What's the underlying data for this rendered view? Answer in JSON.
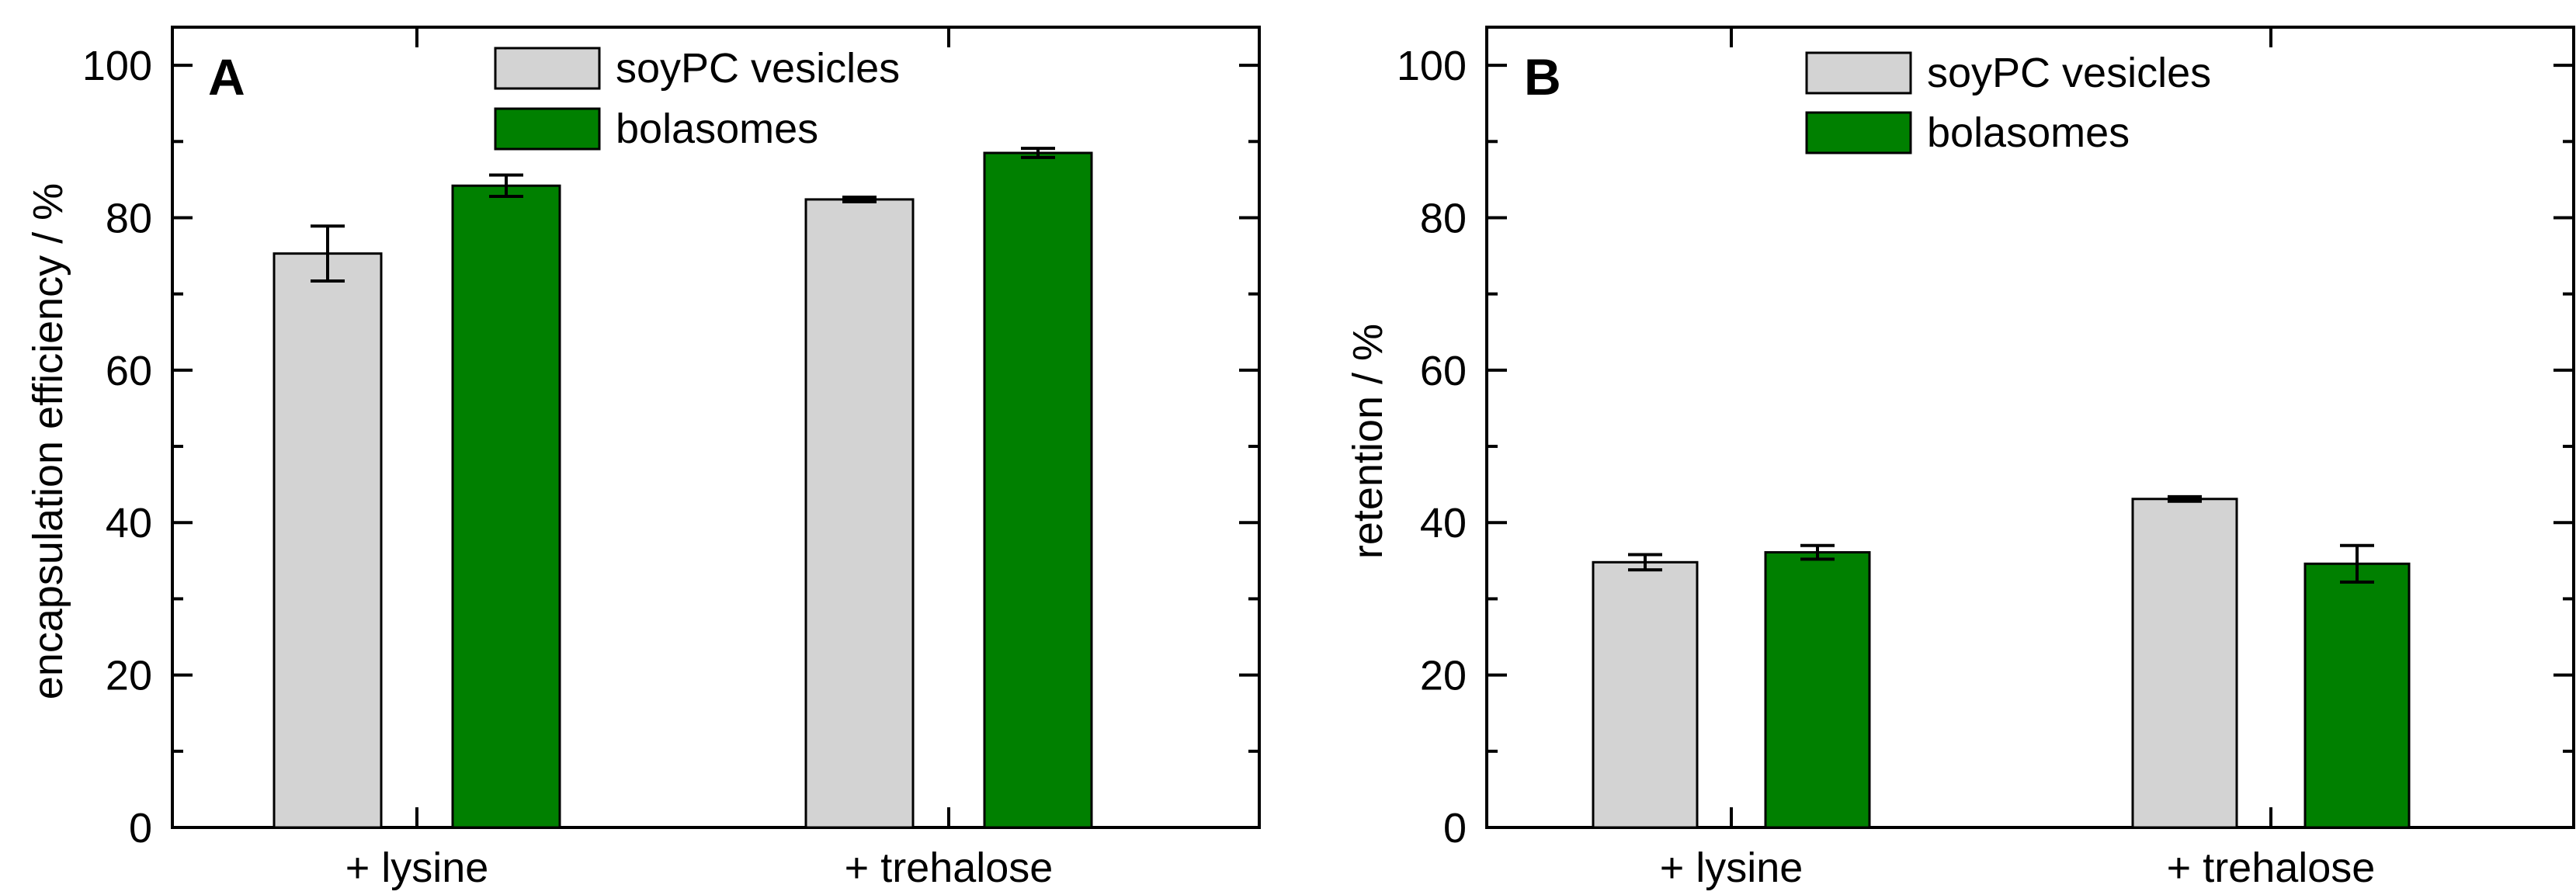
{
  "chart_data": [
    {
      "type": "bar",
      "panel_label": "A",
      "categories": [
        "+ lysine",
        "+ trehalose"
      ],
      "series": [
        {
          "name": "soyPC vesicles",
          "color": "#d3d3d3",
          "values": [
            75.3,
            82.4
          ],
          "errors": [
            3.6,
            0.3
          ]
        },
        {
          "name": "bolasomes",
          "color": "#008000",
          "values": [
            84.2,
            88.5
          ],
          "errors": [
            1.4,
            0.6
          ]
        }
      ],
      "xlabel": "",
      "ylabel": "encapsulation efficiency / %",
      "ylim": [
        0,
        105
      ],
      "yticks": [
        0,
        20,
        40,
        60,
        80,
        100
      ],
      "ytick_labels": [
        "0",
        "20",
        "40",
        "60",
        "80",
        "100"
      ],
      "legend_location": "top-center",
      "grid": false
    },
    {
      "type": "bar",
      "panel_label": "B",
      "categories": [
        "+ lysine",
        "+ trehalose"
      ],
      "series": [
        {
          "name": "soyPC vesicles",
          "color": "#d3d3d3",
          "values": [
            34.8,
            43.1
          ],
          "errors": [
            1.0,
            0.3
          ]
        },
        {
          "name": "bolasomes",
          "color": "#008000",
          "values": [
            36.1,
            34.6
          ],
          "errors": [
            0.9,
            2.4
          ]
        }
      ],
      "xlabel": "",
      "ylabel": "retention / %",
      "ylim": [
        0,
        105
      ],
      "yticks": [
        0,
        20,
        40,
        60,
        80,
        100
      ],
      "ytick_labels": [
        "0",
        "20",
        "40",
        "60",
        "80",
        "100"
      ],
      "legend_location": "top-center",
      "grid": false
    }
  ]
}
